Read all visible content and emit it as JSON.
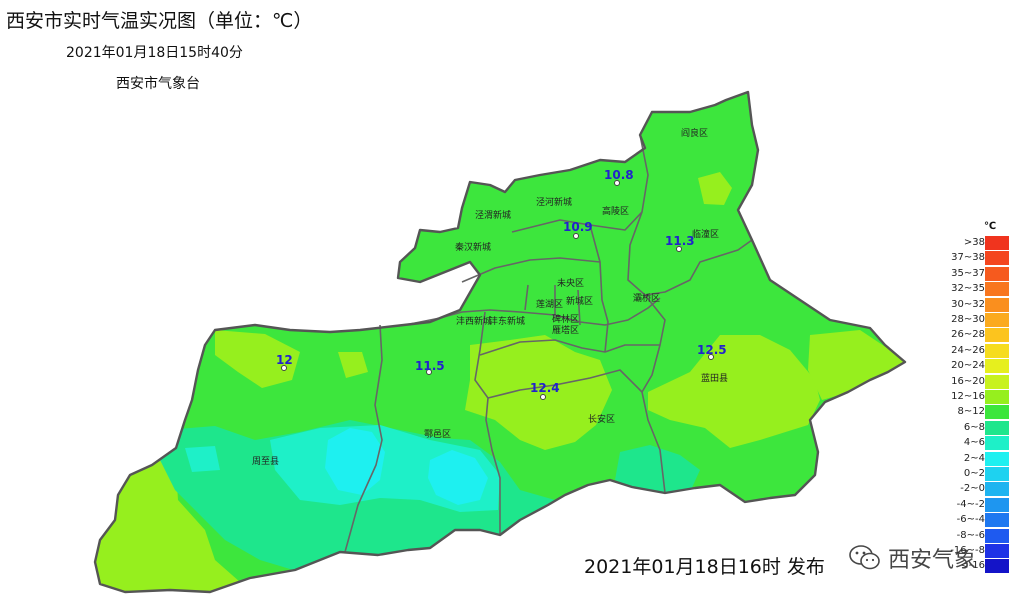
{
  "header": {
    "title": "西安市实时气温实况图（单位：℃）",
    "datetime": "2021年01月18日15时40分",
    "agency": "西安市气象台"
  },
  "footer": {
    "publish_text": "2021年01月18日16时 发布",
    "watermark_text": "西安气象",
    "watermark_icon": "wechat-icon"
  },
  "legend": {
    "unit": "℃",
    "items": [
      {
        "label": ">38",
        "color": "#f0341e"
      },
      {
        "label": "37~38",
        "color": "#f4461e"
      },
      {
        "label": "35~37",
        "color": "#f65a1e"
      },
      {
        "label": "32~35",
        "color": "#f8761e"
      },
      {
        "label": "30~32",
        "color": "#fa8f1e"
      },
      {
        "label": "28~30",
        "color": "#fbaa1e"
      },
      {
        "label": "26~28",
        "color": "#fcc41e"
      },
      {
        "label": "24~26",
        "color": "#f6dc1e"
      },
      {
        "label": "20~24",
        "color": "#e6ef1e"
      },
      {
        "label": "16~20",
        "color": "#c8f21e"
      },
      {
        "label": "12~16",
        "color": "#96ef1e"
      },
      {
        "label": "8~12",
        "color": "#3ce63c"
      },
      {
        "label": "6~8",
        "color": "#1ee68c"
      },
      {
        "label": "4~6",
        "color": "#1ef0c8"
      },
      {
        "label": "2~4",
        "color": "#1ef0f0"
      },
      {
        "label": "0~2",
        "color": "#1ed2f0"
      },
      {
        "label": "-2~0",
        "color": "#1eb4f0"
      },
      {
        "label": "-4~-2",
        "color": "#1e96f0"
      },
      {
        "label": "-6~-4",
        "color": "#1e78f0"
      },
      {
        "label": "-8~-6",
        "color": "#1e5af0"
      },
      {
        "label": "-16~-8",
        "color": "#1e32e6"
      },
      {
        "label": "<-16",
        "color": "#1414c8"
      }
    ]
  },
  "districts": [
    {
      "name": "阎良区"
    },
    {
      "name": "泾河新城"
    },
    {
      "name": "高陵区"
    },
    {
      "name": "泾渭新城"
    },
    {
      "name": "秦汉新城"
    },
    {
      "name": "临潼区"
    },
    {
      "name": "未央区"
    },
    {
      "name": "莲湖区"
    },
    {
      "name": "新城区"
    },
    {
      "name": "灞桥区"
    },
    {
      "name": "碑林区"
    },
    {
      "name": "雁塔区"
    },
    {
      "name": "沣西新城"
    },
    {
      "name": "沣东新城"
    },
    {
      "name": "蓝田县"
    },
    {
      "name": "长安区"
    },
    {
      "name": "鄠邑区"
    },
    {
      "name": "周至县"
    }
  ],
  "stations": [
    {
      "value": "10.8"
    },
    {
      "value": "10.9"
    },
    {
      "value": "11.3"
    },
    {
      "value": "12"
    },
    {
      "value": "11.5"
    },
    {
      "value": "12.4"
    },
    {
      "value": "12.5"
    }
  ]
}
